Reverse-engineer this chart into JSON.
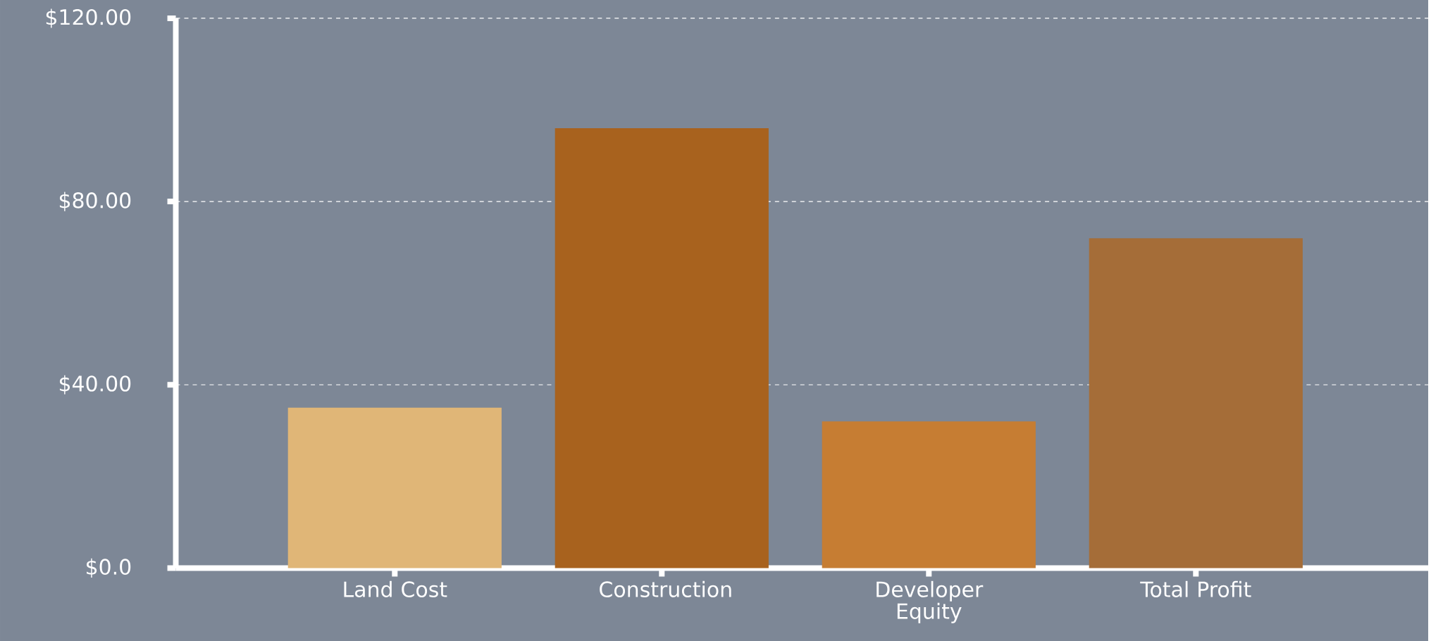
{
  "chart_data": {
    "type": "bar",
    "categories": [
      "Land Cost",
      "Construction",
      "Developer Equity",
      "Total Profit"
    ],
    "values": [
      35,
      96,
      32,
      72
    ],
    "colors": [
      "#e0b677",
      "#a8621e",
      "#c67d33",
      "#a56d38"
    ],
    "ylim": [
      0,
      120
    ],
    "yticks": [
      {
        "value": 0,
        "label": "$0.0"
      },
      {
        "value": 40,
        "label": "$40.00"
      },
      {
        "value": 80,
        "label": "$80.00"
      },
      {
        "value": 120,
        "label": "$120.00"
      }
    ],
    "grid": "y"
  }
}
